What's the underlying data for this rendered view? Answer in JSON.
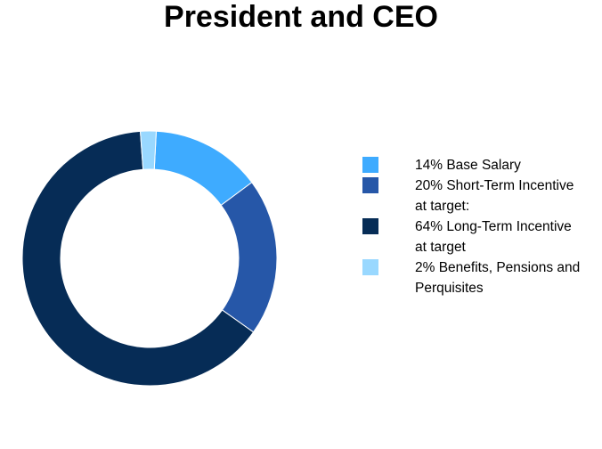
{
  "chart_data": {
    "type": "pie",
    "title": "President and CEO",
    "slices": [
      {
        "label": "14% Base Salary",
        "value": 14,
        "color": "#3EABFF"
      },
      {
        "label": "20% Short-Term Incentive at target:",
        "value": 20,
        "color": "#2657A8"
      },
      {
        "label": "64% Long-Term Incentive at target",
        "value": 64,
        "color": "#062C56"
      },
      {
        "label": "2% Benefits, Pensions and Perquisites",
        "value": 2,
        "color": "#99D8FF"
      }
    ],
    "legend": {
      "position": "right",
      "lines": [
        [
          "14% Base Salary"
        ],
        [
          "20% Short-Term Incentive",
          "at target:"
        ],
        [
          "64% Long-Term Incentive",
          "at target"
        ],
        [
          "2% Benefits, Pensions and",
          "Perquisites"
        ]
      ]
    }
  }
}
